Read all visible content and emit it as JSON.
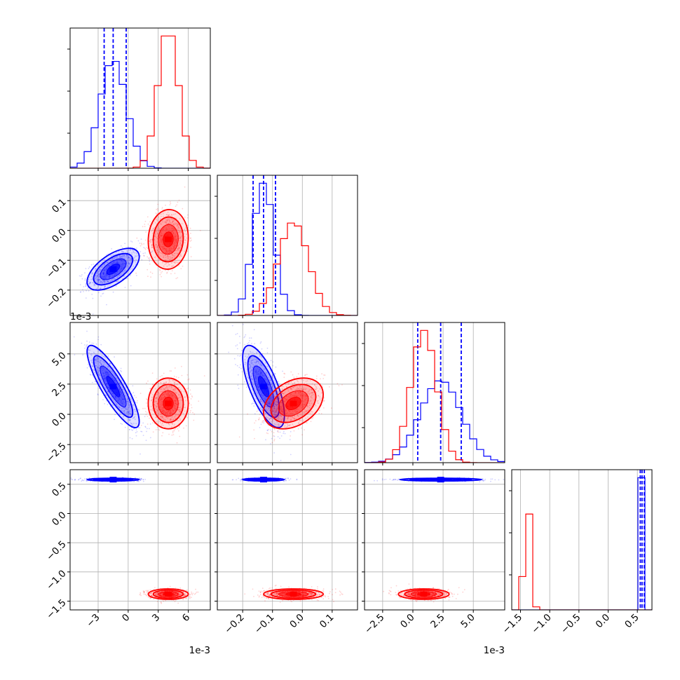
{
  "chart_data": {
    "type": "corner",
    "colors": {
      "blue": "#0000ff",
      "red": "#ff0000"
    },
    "grid": true,
    "parameters": [
      {
        "range": [
          -5.8,
          8.2
        ],
        "offset": "1e-3",
        "ticks": [
          {
            "v": -3,
            "label": "−3"
          },
          {
            "v": 0,
            "label": "0"
          },
          {
            "v": 3,
            "label": "3"
          },
          {
            "v": 6,
            "label": "6"
          }
        ]
      },
      {
        "range": [
          -0.285,
          0.185
        ],
        "offset": "",
        "ticks": [
          {
            "v": -0.2,
            "label": "−0.2"
          },
          {
            "v": -0.1,
            "label": "−0.1"
          },
          {
            "v": 0.0,
            "label": "0.0"
          },
          {
            "v": 0.1,
            "label": "0.1"
          }
        ]
      },
      {
        "range": [
          -4.0,
          7.6
        ],
        "offset": "1e-3",
        "ticks": [
          {
            "v": -2.5,
            "label": "−2.5"
          },
          {
            "v": 0.0,
            "label": "0.0"
          },
          {
            "v": 2.5,
            "label": "2.5"
          },
          {
            "v": 5.0,
            "label": "5.0"
          }
        ]
      },
      {
        "range": [
          -1.65,
          0.75
        ],
        "offset": "",
        "ticks": [
          {
            "v": -1.5,
            "label": "−1.5"
          },
          {
            "v": -1.0,
            "label": "−1.0"
          },
          {
            "v": -0.5,
            "label": "−0.5"
          },
          {
            "v": 0.0,
            "label": "0.0"
          },
          {
            "v": 0.5,
            "label": "0.5"
          }
        ]
      }
    ],
    "series": [
      {
        "color": "blue",
        "means": [
          -1.5,
          -0.13,
          2.3,
          0.58
        ],
        "sigmas": [
          1.3,
          0.035,
          1.7,
          0.012
        ],
        "corr": [
          [
            0,
            1,
            0.6
          ],
          [
            0,
            2,
            -0.85
          ],
          [
            1,
            2,
            -0.7
          ]
        ],
        "quantiles": [
          [
            -2.4,
            -1.5,
            -0.2
          ],
          [
            -0.165,
            -0.13,
            -0.09
          ],
          [
            0.4,
            2.3,
            4.0
          ],
          [
            0.55,
            0.58,
            0.62
          ]
        ]
      },
      {
        "color": "red",
        "means": [
          4.0,
          -0.03,
          0.9,
          -1.38
        ],
        "sigmas": [
          1.0,
          0.05,
          1.05,
          0.045
        ],
        "corr": [
          [
            0,
            1,
            0.05
          ],
          [
            0,
            2,
            0.0
          ],
          [
            1,
            2,
            0.35
          ]
        ],
        "quantiles": []
      }
    ]
  }
}
